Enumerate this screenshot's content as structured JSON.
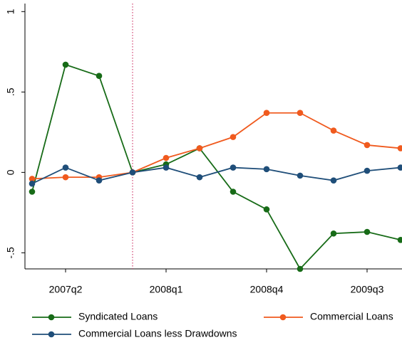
{
  "chart_data": {
    "type": "line",
    "categories": [
      null,
      "2007q2",
      null,
      null,
      "2008q1",
      null,
      null,
      "2008q4",
      null,
      null,
      "2009q3",
      null
    ],
    "series": [
      {
        "name": "Syndicated Loans",
        "color": "#176b17",
        "values": [
          -0.12,
          0.67,
          0.6,
          0,
          0.05,
          0.15,
          -0.12,
          -0.23,
          -0.6,
          -0.38,
          -0.37,
          -0.42
        ]
      },
      {
        "name": "Commercial Loans",
        "color": "#f05a1e",
        "values": [
          -0.04,
          -0.03,
          -0.03,
          0,
          0.09,
          0.15,
          0.22,
          0.37,
          0.37,
          0.26,
          0.17,
          0.15
        ]
      },
      {
        "name": "Commercial Loans less Drawdowns",
        "color": "#1f4e79",
        "values": [
          -0.07,
          0.03,
          -0.05,
          0,
          0.03,
          -0.03,
          0.03,
          0.02,
          -0.02,
          -0.05,
          0.01,
          0.03
        ]
      }
    ],
    "ylim": [
      -0.6,
      1.05
    ],
    "yticks": [
      {
        "value": -0.5,
        "label": "-.5"
      },
      0,
      {
        "value": 0.5,
        "label": ".5"
      },
      1
    ],
    "vline": {
      "at": 3,
      "color": "#d04070"
    },
    "grid": false,
    "legend": "bottom"
  }
}
